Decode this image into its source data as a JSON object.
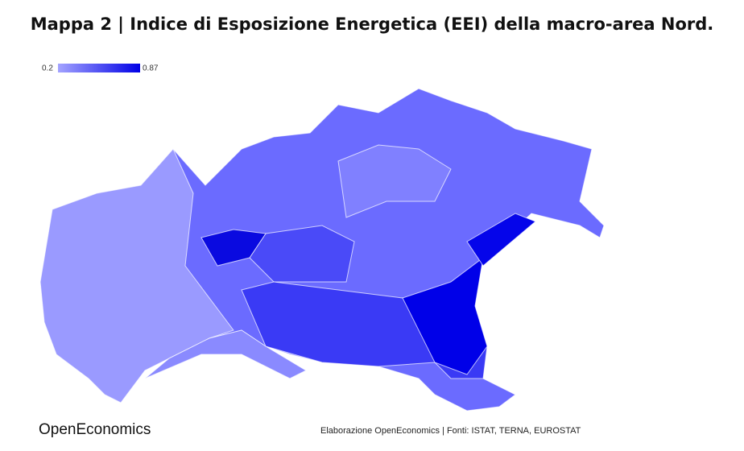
{
  "title": "Mappa 2 | Indice di Esposizione Energetica (EEI) della macro-area Nord.",
  "legend": {
    "min": 0.2,
    "max": 0.87,
    "min_color": "#a3a3ff",
    "max_color": "#0000e6"
  },
  "footer": {
    "brand": "OpenEconomics",
    "source": "Elaborazione OpenEconomics | Fonti: ISTAT, TERNA, EUROSTAT"
  }
}
